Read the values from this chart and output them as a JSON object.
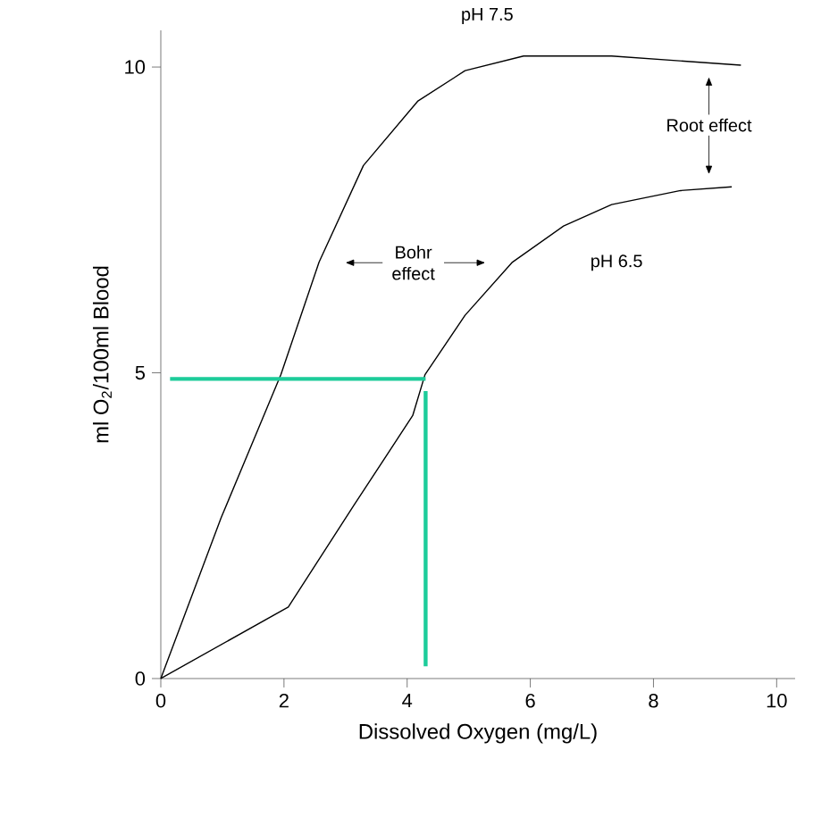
{
  "chart_data": {
    "type": "line",
    "xlabel": "Dissolved Oxygen  (mg/L)",
    "ylabel": "ml O$_{2}$/100ml Blood",
    "xlim": [
      0,
      10.3
    ],
    "ylim": [
      0,
      10.6
    ],
    "xticks": [
      0,
      2,
      4,
      6,
      8,
      10
    ],
    "yticks": [
      0,
      5,
      10
    ],
    "marker": "none",
    "line_style": "solid",
    "series": [
      {
        "color": "#000000",
        "x": [
          0,
          0.98,
          1.95,
          2.57,
          3.29,
          4.17,
          4.94,
          5.89,
          7.32,
          9.42
        ],
        "values": [
          0,
          2.63,
          4.97,
          6.81,
          8.39,
          9.44,
          9.94,
          10.18,
          10.18,
          10.03
        ]
      },
      {
        "color": "#000000",
        "x": [
          0,
          2.07,
          3.14,
          4.09,
          4.29,
          4.94,
          5.71,
          6.54,
          7.32,
          8.44,
          9.27
        ],
        "values": [
          0,
          1.17,
          2.84,
          4.3,
          4.97,
          5.94,
          6.81,
          7.4,
          7.75,
          7.98,
          8.04
        ]
      },
      {
        "color": "#1dcc9a",
        "x": [
          0.15,
          4.3
        ],
        "values": [
          4.9,
          4.9
        ]
      },
      {
        "color": "#1dcc9a",
        "x": [
          4.3,
          4.3
        ],
        "values": [
          4.7,
          0.2
        ]
      }
    ],
    "annotations": [
      "pH 7.5",
      "pH 6.5",
      "Bohr effect",
      "Root effect"
    ]
  }
}
